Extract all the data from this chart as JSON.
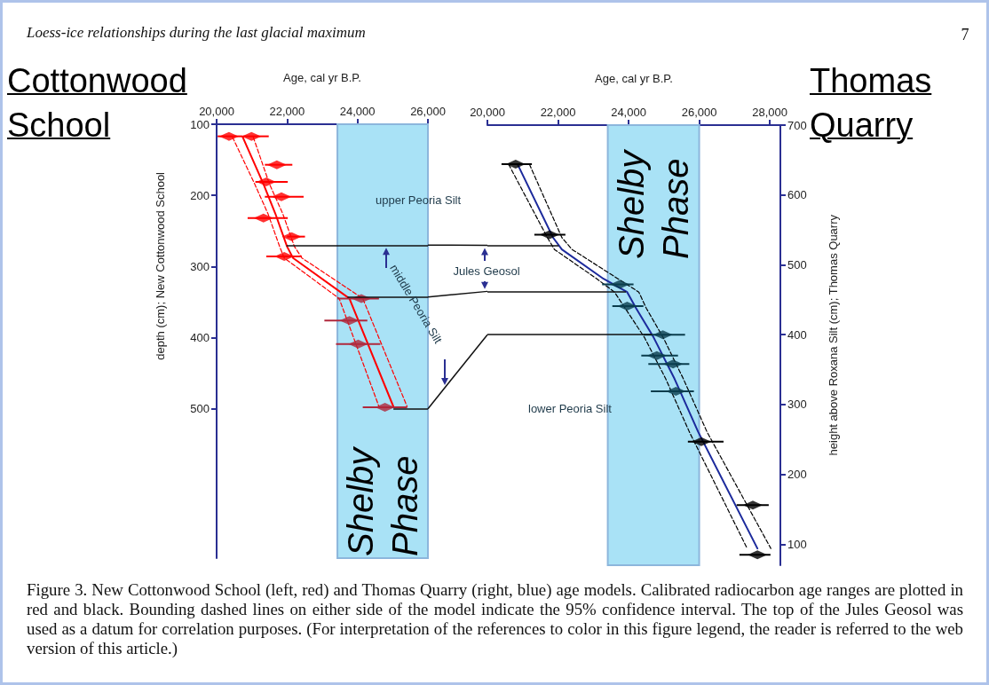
{
  "chart_data": [
    {
      "type": "line",
      "title": "Cottonwood School",
      "xlabel": "Age, cal yr B.P.",
      "ylabel": "depth (cm); New Cottonwood School",
      "xlim": [
        20000,
        26000
      ],
      "xticks": [
        {
          "value": 20000,
          "label": "20,000"
        },
        {
          "value": 22000,
          "label": "22,000"
        },
        {
          "value": 24000,
          "label": "24,000"
        },
        {
          "value": 26000,
          "label": "26,000"
        }
      ],
      "ylim": [
        710,
        100
      ],
      "yticks": [
        100,
        200,
        300,
        400,
        500
      ],
      "series": [
        {
          "x": [
            20740,
            21330,
            21670,
            22000,
            22170,
            23770,
            25020
          ],
          "values": [
            118,
            184,
            226,
            272,
            288,
            345,
            497
          ],
          "color": "#ff0000",
          "marker": "none",
          "line_style": "solid"
        },
        {
          "x": [
            20450,
            21080,
            21460,
            21790,
            21920,
            23480,
            24610
          ],
          "values": [
            118,
            184,
            226,
            272,
            288,
            345,
            497
          ],
          "color": "#ff0000",
          "marker": "none",
          "line_style": "dashed"
        },
        {
          "x": [
            21040,
            21500,
            21880,
            22210,
            22420,
            24150,
            25410
          ],
          "values": [
            118,
            184,
            226,
            272,
            288,
            345,
            497
          ],
          "color": "#ff0000",
          "marker": "none",
          "line_style": "dashed"
        },
        {
          "type": "scatter",
          "x": [
            20350,
            20990,
            21710,
            21410,
            21840,
            21330,
            22130,
            21920,
            24110,
            23770,
            24020,
            24780
          ],
          "values": [
            117,
            117,
            157,
            181,
            202,
            232,
            258,
            286,
            345,
            376,
            409,
            498
          ],
          "xerrors": [
            [
              20030,
              20730
            ],
            [
              20740,
              21480
            ],
            [
              21370,
              22150
            ],
            [
              21100,
              22020
            ],
            [
              21370,
              22470
            ],
            [
              20880,
              22020
            ],
            [
              22000,
              22510
            ],
            [
              21410,
              22420
            ],
            [
              23430,
              24610
            ],
            [
              23060,
              24280
            ],
            [
              23390,
              24650
            ],
            [
              24150,
              25410
            ]
          ],
          "colors": [
            "#ff0000",
            "#ff0000",
            "#ff0000",
            "#ff0000",
            "#ff0000",
            "#ff0000",
            "#ff0000",
            "#ff0000",
            "#b0283c",
            "#b0283c",
            "#b0283c",
            "#b0283c"
          ],
          "marker": "diamond"
        }
      ],
      "bands": [
        {
          "axis": "x",
          "from": 23430,
          "to": 26000,
          "label": "Shelby Phase",
          "color": "#a9e2f6"
        }
      ],
      "ref_lines": [
        {
          "axis": "y",
          "value": 270,
          "color": "#111111"
        },
        {
          "axis": "y",
          "value": 343,
          "color": "#111111"
        },
        {
          "axis": "y",
          "value": 500,
          "color": "#111111"
        }
      ],
      "annotations": [
        "Loess-ice relationships during the last glacial maximum",
        "upper Peoria Silt",
        "Jules Geosol",
        "middle Peoria Silt",
        "Figure 3. New Cottonwood School (left, red) and Thomas Quarry (right, blue) age models. Calibrated radiocarbon age ranges are plotted in red and black. Bounding dashed lines on either side of the model indicate the 95% confidence interval. The top of the Jules Geosol was used as a datum for correlation purposes. (For interpretation of the references to color in this figure legend, the reader is referred to the web version of this article.)"
      ]
    },
    {
      "type": "line",
      "title": "Thomas Quarry",
      "xlabel": "Age, cal yr B.P.",
      "ylabel": "height above Roxana Silt (cm); Thomas Quarry",
      "xlim": [
        20000,
        28300
      ],
      "xticks": [
        {
          "value": 20000,
          "label": "20,000"
        },
        {
          "value": 22000,
          "label": "22,000"
        },
        {
          "value": 24000,
          "label": "24,000"
        },
        {
          "value": 26000,
          "label": "26,000"
        },
        {
          "value": 28000,
          "label": "28,000"
        }
      ],
      "ylim": [
        70,
        700
      ],
      "yticks": [
        100,
        200,
        300,
        400,
        500,
        600,
        700
      ],
      "series": [
        {
          "x": [
            20855,
            21860,
            22110,
            23290,
            23960,
            24210,
            24710,
            25300,
            25970,
            27650
          ],
          "values": [
            644,
            539,
            522,
            480,
            461,
            438,
            396,
            337,
            261,
            94
          ],
          "color": "#1c2a9c",
          "marker": "none",
          "line_style": "solid"
        },
        {
          "x": [
            20600,
            21700,
            21900,
            23100,
            23600,
            23900,
            24450,
            25050,
            25720,
            27360
          ],
          "values": [
            644,
            539,
            522,
            480,
            461,
            438,
            396,
            337,
            261,
            94
          ],
          "color": "#000000",
          "marker": "none",
          "line_style": "dashed"
        },
        {
          "x": [
            21190,
            22110,
            22400,
            23700,
            24290,
            24500,
            24980,
            25550,
            26220,
            28030
          ],
          "values": [
            644,
            539,
            522,
            480,
            461,
            438,
            396,
            337,
            261,
            94
          ],
          "color": "#000000",
          "marker": "none",
          "line_style": "dashed"
        },
        {
          "type": "scatter",
          "x": [
            20800,
            21760,
            23750,
            23960,
            24970,
            24800,
            25260,
            25340,
            26060,
            27520,
            27650
          ],
          "values": [
            644,
            543,
            472,
            441,
            400,
            370,
            358,
            319,
            247,
            156,
            85
          ],
          "xerrors": [
            [
              20400,
              21260
            ],
            [
              21330,
              22210
            ],
            [
              23250,
              24140
            ],
            [
              23540,
              24420
            ],
            [
              24420,
              25600
            ],
            [
              24360,
              25400
            ],
            [
              24560,
              25720
            ],
            [
              24630,
              25850
            ],
            [
              25680,
              26690
            ],
            [
              27060,
              27970
            ],
            [
              27140,
              28020
            ]
          ],
          "colors": [
            "#000000",
            "#000000",
            "#0a3d4d",
            "#0a3d4d",
            "#0a3d4d",
            "#0a3d4d",
            "#0a3d4d",
            "#0a3d4d",
            "#000000",
            "#000000",
            "#000000"
          ],
          "marker": "diamond"
        }
      ],
      "bands": [
        {
          "axis": "x",
          "from": 23410,
          "to": 26000,
          "label": "Shelby Phase",
          "color": "#a9e2f6"
        }
      ],
      "ref_lines": [
        {
          "axis": "y",
          "value": 528,
          "color": "#111111"
        },
        {
          "axis": "y",
          "value": 462,
          "color": "#111111"
        },
        {
          "axis": "y",
          "value": 400,
          "color": "#111111"
        }
      ],
      "annotations": [
        "7",
        "lower Peoria Silt"
      ]
    }
  ]
}
